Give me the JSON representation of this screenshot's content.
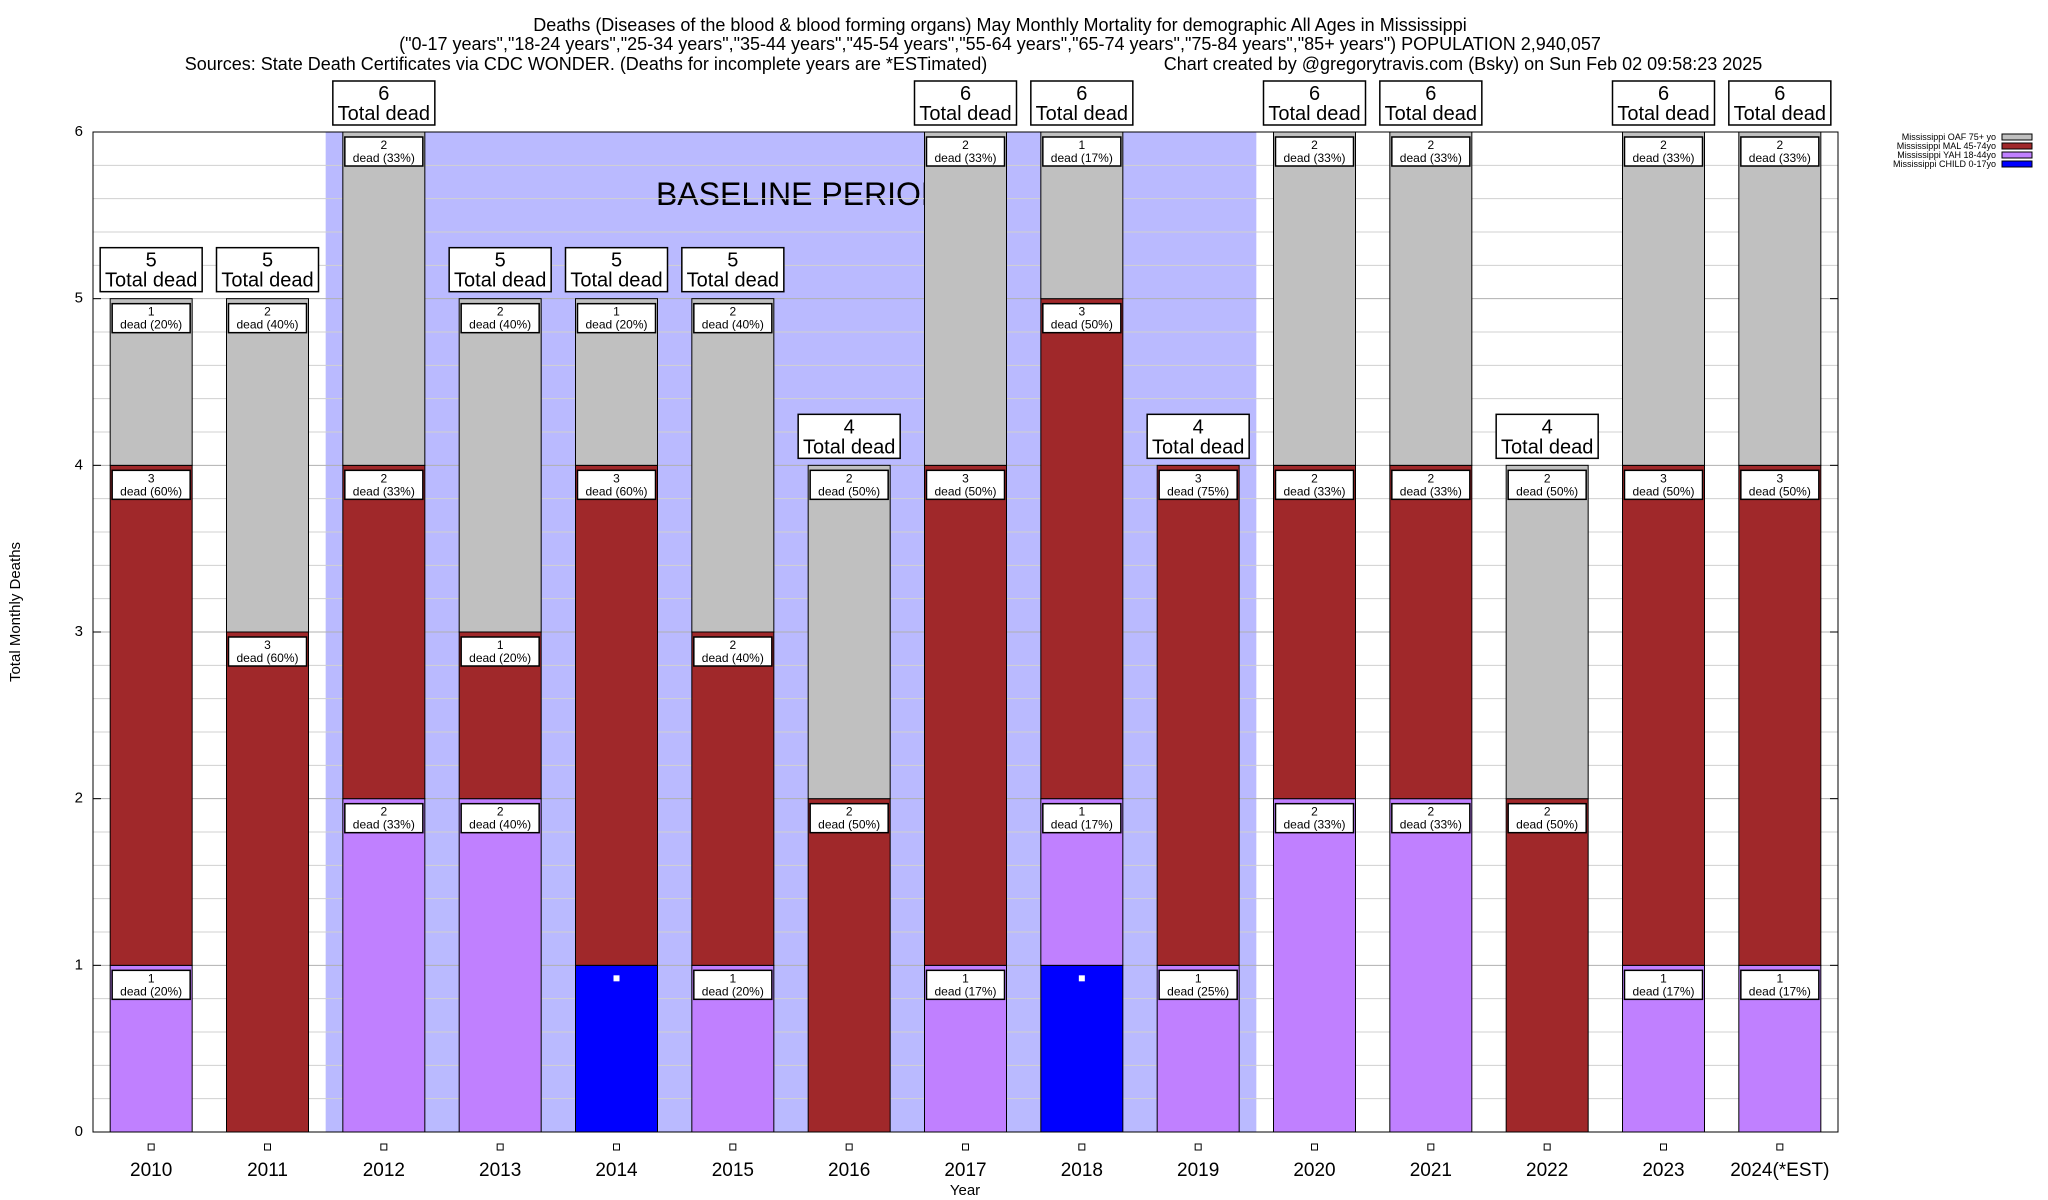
{
  "chart_data": {
    "type": "bar",
    "stacked": true,
    "title_lines": [
      "Deaths (Diseases of the blood & blood forming organs) May Monthly Mortality for demographic All Ages in Mississippi",
      "(\"0-17 years\",\"18-24 years\",\"25-34 years\",\"35-44 years\",\"45-54 years\",\"55-64 years\",\"65-74 years\",\"75-84 years\",\"85+ years\") POPULATION 2,940,057",
      "Sources: State Death Certificates via CDC WONDER. (Deaths for incomplete years are *ESTimated)",
      "Chart created by @gregorytravis.com (Bsky) on Sun Feb 02 09:58:23 2025"
    ],
    "xlabel": "Year",
    "ylabel": "Total Monthly Deaths",
    "ylim": [
      0,
      6
    ],
    "yticks": [
      "0",
      "1",
      "2",
      "3",
      "4",
      "5",
      "6"
    ],
    "grid": true,
    "legend_position": "top-right",
    "baseline_label": "BASELINE PERIOD",
    "baseline_range": [
      "2012",
      "2019"
    ],
    "total_suffix": "Total dead",
    "categories": [
      "2010",
      "2011",
      "2012",
      "2013",
      "2014",
      "2015",
      "2016",
      "2017",
      "2018",
      "2019",
      "2020",
      "2021",
      "2022",
      "2023",
      "2024(*EST)"
    ],
    "series": [
      {
        "name": "Mississippi CHILD 0-17yo",
        "color": "#0000ff",
        "values": [
          0,
          0,
          0,
          0,
          1,
          0,
          0,
          0,
          1,
          0,
          0,
          0,
          0,
          0,
          0
        ],
        "labels": [
          "",
          "",
          "",
          "",
          "",
          "",
          "",
          "",
          "",
          "",
          "",
          "",
          "",
          "",
          ""
        ]
      },
      {
        "name": "Mississippi YAH 18-44yo",
        "color": "#c080ff",
        "values": [
          1,
          0,
          2,
          2,
          0,
          1,
          0,
          1,
          1,
          1,
          2,
          2,
          0,
          1,
          1
        ],
        "labels": [
          "dead (20%)",
          "",
          "dead (33%)",
          "dead (40%)",
          "",
          "dead (20%)",
          "",
          "dead (17%)",
          "dead (17%)",
          "dead (25%)",
          "dead (33%)",
          "dead (33%)",
          "",
          "dead (17%)",
          "dead (17%)"
        ]
      },
      {
        "name": "Mississippi MAL 45-74yo",
        "color": "#a0282a",
        "values": [
          3,
          3,
          2,
          1,
          3,
          2,
          2,
          3,
          3,
          3,
          2,
          2,
          2,
          3,
          3
        ],
        "labels": [
          "dead (60%)",
          "dead (60%)",
          "dead (33%)",
          "dead (20%)",
          "dead (60%)",
          "dead (40%)",
          "dead (50%)",
          "dead (50%)",
          "dead (50%)",
          "dead (75%)",
          "dead (33%)",
          "dead (33%)",
          "dead (50%)",
          "dead (50%)",
          "dead (50%)"
        ]
      },
      {
        "name": "Mississippi OAF 75+ yo",
        "color": "#c0c0c0",
        "values": [
          1,
          2,
          2,
          2,
          1,
          2,
          2,
          2,
          1,
          0,
          2,
          2,
          2,
          2,
          2
        ],
        "labels": [
          "dead (20%)",
          "dead (40%)",
          "dead (33%)",
          "dead (40%)",
          "dead (20%)",
          "dead (40%)",
          "dead (50%)",
          "dead (33%)",
          "dead (17%)",
          "",
          "dead (33%)",
          "dead (33%)",
          "dead (50%)",
          "dead (33%)",
          "dead (33%)"
        ]
      }
    ],
    "totals": [
      5,
      5,
      6,
      5,
      5,
      5,
      4,
      6,
      6,
      4,
      6,
      6,
      4,
      6,
      6
    ],
    "legend_order": [
      "Mississippi OAF 75+ yo",
      "Mississippi MAL 45-74yo",
      "Mississippi YAH 18-44yo",
      "Mississippi CHILD 0-17yo"
    ]
  }
}
